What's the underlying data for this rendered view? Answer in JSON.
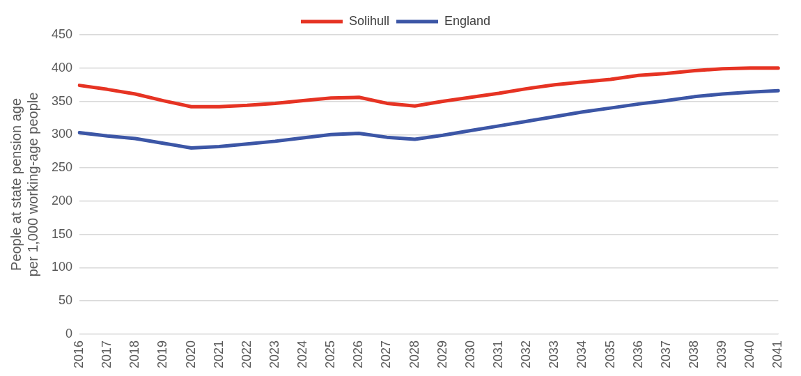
{
  "chart_data": {
    "type": "line",
    "ylabel": "People at state pension age\nper 1,000 working-age people",
    "categories": [
      "2016",
      "2017",
      "2018",
      "2019",
      "2020",
      "2021",
      "2022",
      "2023",
      "2024",
      "2025",
      "2026",
      "2027",
      "2028",
      "2029",
      "2030",
      "2031",
      "2032",
      "2033",
      "2034",
      "2035",
      "2036",
      "2037",
      "2038",
      "2039",
      "2040",
      "2041"
    ],
    "series": [
      {
        "name": "Solihull",
        "color": "#e63323",
        "values": [
          374,
          368,
          361,
          351,
          342,
          342,
          344,
          347,
          351,
          355,
          356,
          347,
          343,
          350,
          356,
          362,
          369,
          375,
          379,
          383,
          389,
          392,
          396,
          399,
          400,
          400
        ]
      },
      {
        "name": "England",
        "color": "#3c56a6",
        "values": [
          303,
          298,
          294,
          287,
          280,
          282,
          286,
          290,
          295,
          300,
          302,
          296,
          293,
          299,
          306,
          313,
          320,
          327,
          334,
          340,
          346,
          351,
          357,
          361,
          364,
          366
        ]
      }
    ],
    "ylim": [
      0,
      450
    ],
    "yticks": [
      0,
      50,
      100,
      150,
      200,
      250,
      300,
      350,
      400,
      450
    ],
    "grid": "y",
    "legend": "top",
    "marker": "none",
    "line_style": "solid"
  }
}
